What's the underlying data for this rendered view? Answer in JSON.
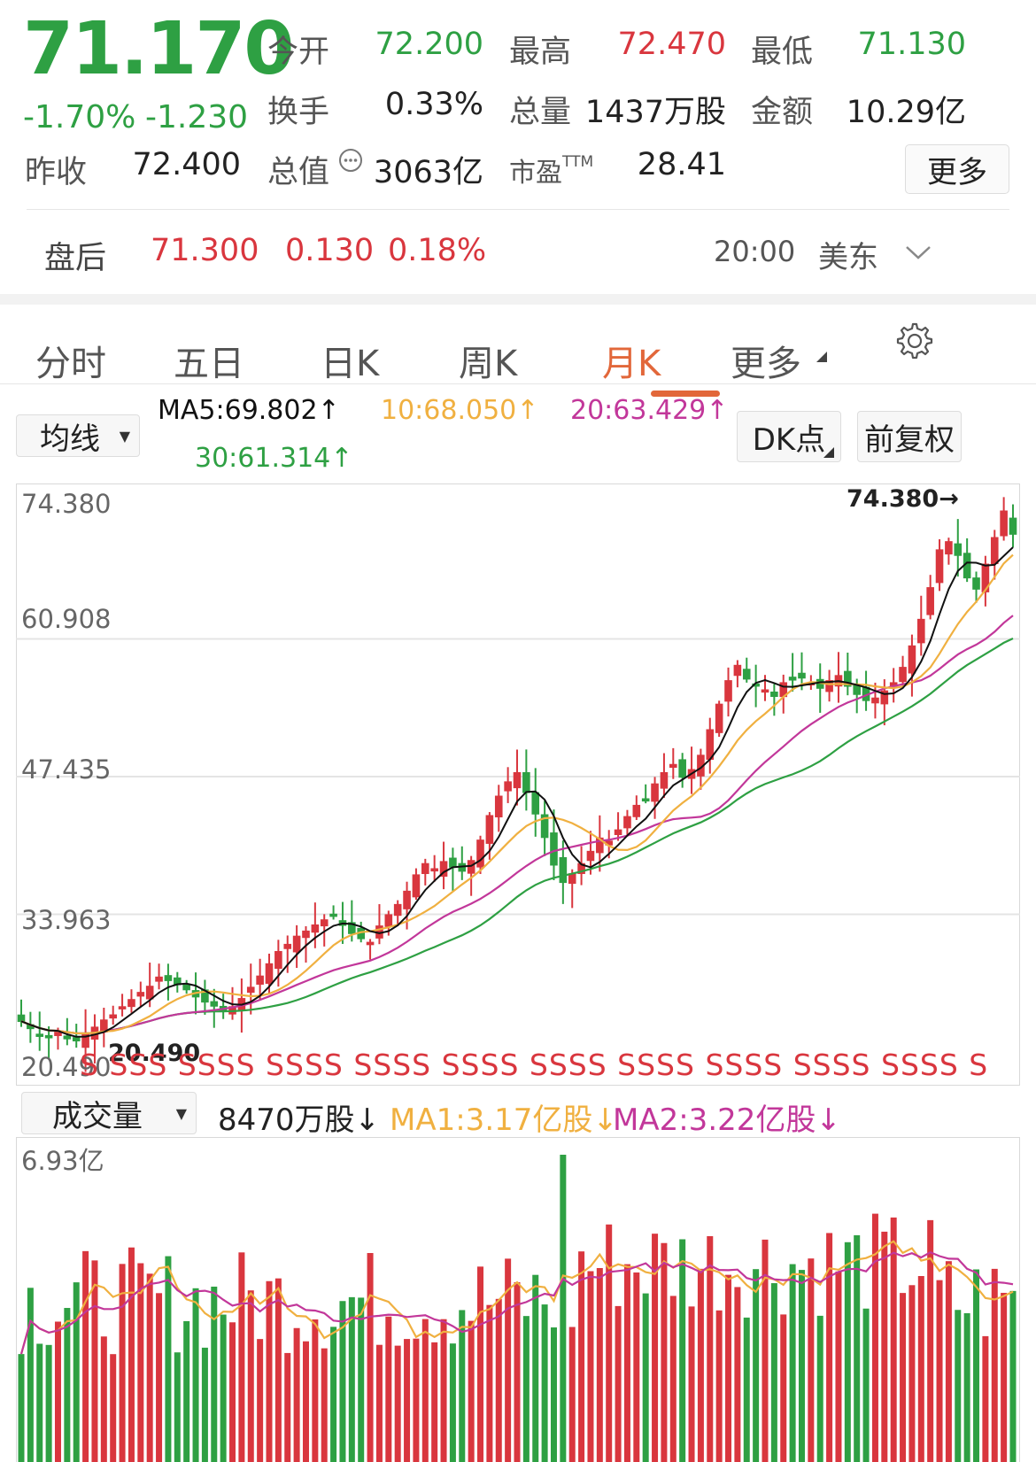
{
  "quote": {
    "price": "71.170",
    "change_pct": "-1.70%",
    "change": "-1.230",
    "fields": [
      {
        "label": "今开",
        "value": "72.200",
        "color": "#2ea043"
      },
      {
        "label": "最高",
        "value": "72.470",
        "color": "#d9363e"
      },
      {
        "label": "最低",
        "value": "71.130",
        "color": "#2ea043"
      },
      {
        "label": "换手",
        "value": "0.33%",
        "color": "#222222"
      },
      {
        "label": "总量",
        "value": "1437万股",
        "color": "#222222"
      },
      {
        "label": "金额",
        "value": "10.29亿",
        "color": "#222222"
      },
      {
        "label": "昨收",
        "value": "72.400",
        "color": "#222222"
      },
      {
        "label": "总值",
        "value": "3063亿",
        "color": "#222222"
      },
      {
        "label": "市盈",
        "label_sup": "TTM",
        "value": "28.41",
        "color": "#222222"
      }
    ],
    "more_label": "更多"
  },
  "after_hours": {
    "label": "盘后",
    "price": "71.300",
    "change": "0.130",
    "change_pct": "0.18%",
    "time": "20:00",
    "timezone": "美东"
  },
  "tabs": [
    {
      "label": "分时",
      "active": false
    },
    {
      "label": "五日",
      "active": false
    },
    {
      "label": "日K",
      "active": false
    },
    {
      "label": "周K",
      "active": false
    },
    {
      "label": "月K",
      "active": true
    },
    {
      "label": "更多",
      "active": false
    }
  ],
  "indicators": {
    "ma_select": "均线",
    "ma5": "MA5:69.802↑",
    "ma10": "10:68.050↑",
    "ma20": "20:63.429↑",
    "ma30": "30:61.314↑",
    "dk_label": "DK点",
    "adjust_label": "前复权"
  },
  "colors": {
    "up": "#d9363e",
    "down": "#2ea043",
    "ma5": "#111111",
    "ma10": "#f0b040",
    "ma20": "#c2379a",
    "ma30": "#2ea043",
    "accent": "#e2673a"
  },
  "price_chart": {
    "y_ticks": [
      "74.380",
      "60.908",
      "47.435",
      "33.963",
      "20.490"
    ],
    "max_label": "74.380→",
    "min_label": "20.490",
    "s_marks": "S SSS SSSS SSSS SSSS SSSS SSSS SSSS SSSS SSSS SSSS S"
  },
  "volume": {
    "select": "成交量",
    "current": "8470万股↓",
    "ma1": "MA1:3.17亿股↓",
    "ma2": "MA2:3.22亿股↓",
    "max_tick": "6.93亿"
  },
  "chart_data": {
    "type": "candlestick",
    "y_range": [
      20.49,
      74.38
    ],
    "ohlc_approx_close": [
      23.5,
      22.8,
      22.2,
      21.9,
      22.4,
      21.8,
      21.6,
      22.3,
      22.9,
      23.6,
      24.1,
      24.9,
      25.6,
      26.3,
      26.9,
      27.8,
      27.5,
      27.1,
      26.6,
      25.9,
      25.4,
      25.0,
      24.6,
      24.9,
      25.7,
      26.8,
      27.9,
      29.1,
      30.3,
      31.0,
      31.8,
      32.3,
      32.9,
      33.4,
      33.8,
      32.9,
      32.1,
      31.6,
      31.2,
      32.8,
      33.9,
      34.9,
      36.2,
      37.8,
      38.9,
      38.4,
      39.1,
      38.6,
      38.2,
      39.2,
      41.2,
      43.6,
      45.5,
      46.9,
      47.8,
      45.9,
      43.8,
      41.5,
      38.8,
      37.1,
      37.9,
      38.9,
      40.1,
      41.4,
      41.1,
      42.2,
      43.5,
      44.6,
      45.2,
      46.7,
      47.8,
      48.6,
      47.4,
      48.1,
      49.5,
      52.0,
      54.5,
      56.8,
      58.3,
      57.0,
      56.4,
      55.9,
      55.3,
      56.6,
      56.9,
      57.1,
      56.6,
      56.1,
      56.8,
      57.3,
      56.3,
      55.5,
      54.9,
      55.1,
      55.8,
      56.6,
      58.1,
      60.2,
      62.8,
      65.9,
      69.6,
      70.4,
      69.1,
      66.9,
      65.8,
      68.2,
      70.8,
      73.4,
      71.17
    ],
    "ma_latest": {
      "MA5": 69.802,
      "MA10": 68.05,
      "MA20": 63.429,
      "MA30": 61.314
    }
  }
}
